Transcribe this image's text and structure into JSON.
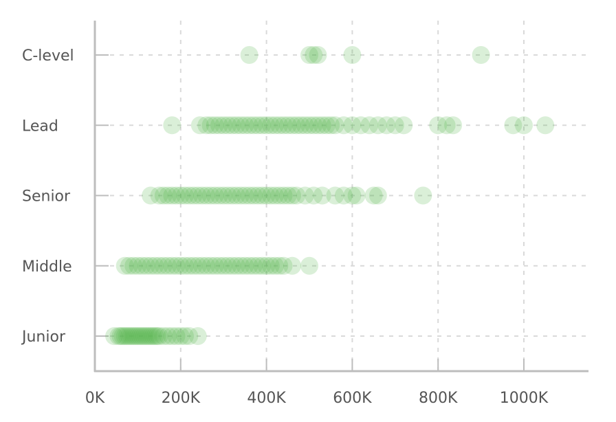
{
  "chart_data": {
    "type": "scatter",
    "title": "",
    "xlabel": "",
    "ylabel": "",
    "grid": true,
    "legend": "none",
    "xlim": [
      0,
      1150000
    ],
    "x_ticks": [
      0,
      200000,
      400000,
      600000,
      800000,
      1000000
    ],
    "x_tick_labels": [
      "0K",
      "200K",
      "400K",
      "600K",
      "800K",
      "1000K"
    ],
    "categories": [
      "Junior",
      "Middle",
      "Senior",
      "Lead",
      "C-level"
    ],
    "colors": {
      "point": "#55b44e",
      "grid": "#d9d9d9",
      "axis": "#bdbdbd",
      "text": "#555555"
    },
    "series": [
      {
        "category": "Junior",
        "x": [
          45000,
          55000,
          60000,
          65000,
          70000,
          75000,
          80000,
          85000,
          90000,
          95000,
          100000,
          105000,
          110000,
          115000,
          120000,
          125000,
          130000,
          135000,
          140000,
          145000,
          150000,
          160000,
          170000,
          180000,
          190000,
          200000,
          210000,
          220000,
          240000
        ]
      },
      {
        "category": "Middle",
        "x": [
          70000,
          80000,
          90000,
          100000,
          110000,
          120000,
          130000,
          140000,
          150000,
          160000,
          170000,
          180000,
          190000,
          200000,
          210000,
          220000,
          230000,
          240000,
          250000,
          260000,
          270000,
          280000,
          290000,
          300000,
          310000,
          320000,
          330000,
          340000,
          350000,
          360000,
          370000,
          380000,
          390000,
          400000,
          410000,
          420000,
          430000,
          440000,
          460000,
          500000
        ]
      },
      {
        "category": "Senior",
        "x": [
          130000,
          150000,
          160000,
          170000,
          180000,
          190000,
          200000,
          210000,
          220000,
          230000,
          240000,
          250000,
          260000,
          270000,
          280000,
          290000,
          300000,
          310000,
          320000,
          330000,
          340000,
          350000,
          360000,
          370000,
          380000,
          390000,
          400000,
          410000,
          420000,
          430000,
          440000,
          450000,
          460000,
          470000,
          490000,
          510000,
          530000,
          560000,
          580000,
          600000,
          610000,
          650000,
          660000,
          765000
        ]
      },
      {
        "category": "Lead",
        "x": [
          180000,
          245000,
          260000,
          270000,
          280000,
          290000,
          300000,
          310000,
          320000,
          330000,
          340000,
          350000,
          360000,
          370000,
          380000,
          390000,
          400000,
          410000,
          420000,
          430000,
          440000,
          450000,
          460000,
          470000,
          480000,
          490000,
          500000,
          510000,
          520000,
          530000,
          540000,
          550000,
          560000,
          580000,
          600000,
          620000,
          640000,
          660000,
          680000,
          700000,
          720000,
          800000,
          820000,
          835000,
          975000,
          1000000,
          1050000
        ]
      },
      {
        "category": "C-level",
        "x": [
          360000,
          500000,
          510000,
          520000,
          600000,
          900000
        ]
      }
    ]
  }
}
